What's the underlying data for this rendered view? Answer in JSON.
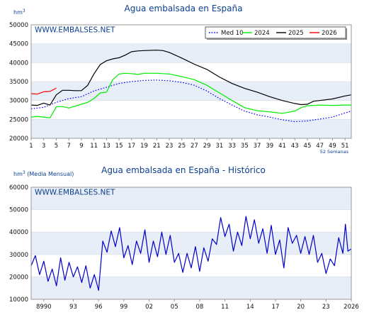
{
  "chart_data": [
    {
      "type": "line",
      "title": "Agua embalsada en España",
      "unit": "hm",
      "unit_sup": "3",
      "watermark": "WWW.EMBALSES.NET",
      "x_suffix": "52 Semanas",
      "xlim": [
        1,
        52
      ],
      "ylim": [
        20000,
        50000
      ],
      "y_ticks": [
        "50000",
        "45000",
        "40000",
        "35000",
        "30000",
        "25000",
        "20000"
      ],
      "x_ticks": [
        "1",
        "3",
        "5",
        "7",
        "9",
        "11",
        "13",
        "15",
        "17",
        "19",
        "21",
        "23",
        "25",
        "27",
        "29",
        "31",
        "33",
        "35",
        "37",
        "39",
        "41",
        "43",
        "45",
        "47",
        "49",
        "51"
      ],
      "grid": true,
      "legend_position": "top-right",
      "series": [
        {
          "name": "Med 10",
          "color": "#0000ff",
          "style": "dotted",
          "points": [
            [
              1,
              27800
            ],
            [
              3,
              28200
            ],
            [
              5,
              29500
            ],
            [
              7,
              30500
            ],
            [
              9,
              31000
            ],
            [
              11,
              32500
            ],
            [
              13,
              33500
            ],
            [
              15,
              34500
            ],
            [
              17,
              35000
            ],
            [
              19,
              35300
            ],
            [
              21,
              35400
            ],
            [
              23,
              35200
            ],
            [
              25,
              34800
            ],
            [
              27,
              34000
            ],
            [
              29,
              32500
            ],
            [
              31,
              30500
            ],
            [
              33,
              28800
            ],
            [
              35,
              27200
            ],
            [
              37,
              26200
            ],
            [
              39,
              25600
            ],
            [
              41,
              24900
            ],
            [
              43,
              24400
            ],
            [
              45,
              24600
            ],
            [
              47,
              25100
            ],
            [
              49,
              25600
            ],
            [
              51,
              26700
            ],
            [
              52,
              27200
            ]
          ]
        },
        {
          "name": "2024",
          "color": "#00ee00",
          "style": "solid",
          "points": [
            [
              1,
              25600
            ],
            [
              2,
              25800
            ],
            [
              3,
              25600
            ],
            [
              4,
              25400
            ],
            [
              5,
              28300
            ],
            [
              6,
              28400
            ],
            [
              7,
              28000
            ],
            [
              9,
              29000
            ],
            [
              10,
              29500
            ],
            [
              11,
              30500
            ],
            [
              12,
              32000
            ],
            [
              13,
              32200
            ],
            [
              14,
              35500
            ],
            [
              15,
              37000
            ],
            [
              16,
              37200
            ],
            [
              17,
              37100
            ],
            [
              18,
              36900
            ],
            [
              19,
              37200
            ],
            [
              21,
              37200
            ],
            [
              23,
              37000
            ],
            [
              25,
              36300
            ],
            [
              27,
              35500
            ],
            [
              29,
              34000
            ],
            [
              31,
              32000
            ],
            [
              33,
              30000
            ],
            [
              35,
              28100
            ],
            [
              37,
              27300
            ],
            [
              39,
              27000
            ],
            [
              41,
              26600
            ],
            [
              43,
              27200
            ],
            [
              44,
              28100
            ],
            [
              45,
              28600
            ],
            [
              47,
              28800
            ],
            [
              49,
              28700
            ],
            [
              51,
              28800
            ],
            [
              52,
              28800
            ]
          ]
        },
        {
          "name": "2025",
          "color": "#000000",
          "style": "solid",
          "points": [
            [
              1,
              28800
            ],
            [
              2,
              28700
            ],
            [
              3,
              29300
            ],
            [
              4,
              28800
            ],
            [
              5,
              31500
            ],
            [
              6,
              32700
            ],
            [
              7,
              32700
            ],
            [
              8,
              32600
            ],
            [
              9,
              32600
            ],
            [
              10,
              34000
            ],
            [
              11,
              37000
            ],
            [
              12,
              39500
            ],
            [
              13,
              40500
            ],
            [
              14,
              41000
            ],
            [
              15,
              41300
            ],
            [
              16,
              42000
            ],
            [
              17,
              42900
            ],
            [
              18,
              43100
            ],
            [
              19,
              43200
            ],
            [
              21,
              43300
            ],
            [
              22,
              43200
            ],
            [
              23,
              42700
            ],
            [
              25,
              41200
            ],
            [
              27,
              39600
            ],
            [
              29,
              38200
            ],
            [
              31,
              36200
            ],
            [
              33,
              34500
            ],
            [
              35,
              33200
            ],
            [
              37,
              32200
            ],
            [
              39,
              31000
            ],
            [
              41,
              30000
            ],
            [
              43,
              29200
            ],
            [
              44,
              28900
            ],
            [
              45,
              29000
            ],
            [
              46,
              29800
            ],
            [
              47,
              30000
            ],
            [
              49,
              30400
            ],
            [
              51,
              31200
            ],
            [
              52,
              31500
            ]
          ]
        },
        {
          "name": "2026",
          "color": "#ff0000",
          "style": "solid",
          "points": [
            [
              1,
              31800
            ],
            [
              2,
              31700
            ],
            [
              3,
              32300
            ],
            [
              4,
              32400
            ],
            [
              5,
              33300
            ]
          ]
        }
      ]
    },
    {
      "type": "line",
      "title": "Agua embalsada en España - Histórico",
      "unit": "hm",
      "unit_sup": "3",
      "unit_note": " (Media Mensual)",
      "watermark": "WWW.EMBALSES.NET",
      "xlim": [
        1988,
        2026
      ],
      "ylim": [
        10000,
        60000
      ],
      "y_ticks": [
        "60000",
        "50000",
        "40000",
        "30000",
        "20000",
        "10000"
      ],
      "x_ticks": [
        "8990",
        "93",
        "96",
        "99",
        "02",
        "05",
        "08",
        "11",
        "14",
        "17",
        "20",
        "23",
        "2026"
      ],
      "grid": true,
      "series": [
        {
          "name": "",
          "color": "#0000cc",
          "style": "solid",
          "points": [
            [
              1988.0,
              25000
            ],
            [
              1988.5,
              29500
            ],
            [
              1989.0,
              21000
            ],
            [
              1989.5,
              27000
            ],
            [
              1990.0,
              18000
            ],
            [
              1990.5,
              23500
            ],
            [
              1991.0,
              16000
            ],
            [
              1991.5,
              28500
            ],
            [
              1992.0,
              18500
            ],
            [
              1992.5,
              26500
            ],
            [
              1993.0,
              20000
            ],
            [
              1993.5,
              24500
            ],
            [
              1994.0,
              17500
            ],
            [
              1994.5,
              25000
            ],
            [
              1995.0,
              15000
            ],
            [
              1995.5,
              21000
            ],
            [
              1996.0,
              14000
            ],
            [
              1996.5,
              36000
            ],
            [
              1997.0,
              31000
            ],
            [
              1997.5,
              40500
            ],
            [
              1998.0,
              33500
            ],
            [
              1998.5,
              42000
            ],
            [
              1999.0,
              28500
            ],
            [
              1999.5,
              34000
            ],
            [
              2000.0,
              25500
            ],
            [
              2000.5,
              36000
            ],
            [
              2001.0,
              30500
            ],
            [
              2001.5,
              41000
            ],
            [
              2002.0,
              26500
            ],
            [
              2002.5,
              36000
            ],
            [
              2003.0,
              29000
            ],
            [
              2003.5,
              40000
            ],
            [
              2004.0,
              30000
            ],
            [
              2004.5,
              38500
            ],
            [
              2005.0,
              26500
            ],
            [
              2005.5,
              30500
            ],
            [
              2006.0,
              22000
            ],
            [
              2006.5,
              30500
            ],
            [
              2007.0,
              24000
            ],
            [
              2007.5,
              33500
            ],
            [
              2008.0,
              22500
            ],
            [
              2008.5,
              33000
            ],
            [
              2009.0,
              27000
            ],
            [
              2009.5,
              37000
            ],
            [
              2010.0,
              34500
            ],
            [
              2010.5,
              46500
            ],
            [
              2011.0,
              38000
            ],
            [
              2011.5,
              43500
            ],
            [
              2012.0,
              31500
            ],
            [
              2012.5,
              40000
            ],
            [
              2013.0,
              34000
            ],
            [
              2013.5,
              47000
            ],
            [
              2014.0,
              37000
            ],
            [
              2014.5,
              45500
            ],
            [
              2015.0,
              35000
            ],
            [
              2015.5,
              41500
            ],
            [
              2016.0,
              30500
            ],
            [
              2016.5,
              43000
            ],
            [
              2017.0,
              30000
            ],
            [
              2017.5,
              36500
            ],
            [
              2018.0,
              24000
            ],
            [
              2018.5,
              42000
            ],
            [
              2019.0,
              35000
            ],
            [
              2019.5,
              38500
            ],
            [
              2020.0,
              30500
            ],
            [
              2020.5,
              38000
            ],
            [
              2021.0,
              30000
            ],
            [
              2021.5,
              38500
            ],
            [
              2022.0,
              26500
            ],
            [
              2022.5,
              30500
            ],
            [
              2023.0,
              21500
            ],
            [
              2023.5,
              28000
            ],
            [
              2024.0,
              25000
            ],
            [
              2024.5,
              37500
            ],
            [
              2025.0,
              30500
            ],
            [
              2025.3,
              43500
            ],
            [
              2025.6,
              31500
            ],
            [
              2026.0,
              32500
            ]
          ]
        }
      ]
    }
  ]
}
